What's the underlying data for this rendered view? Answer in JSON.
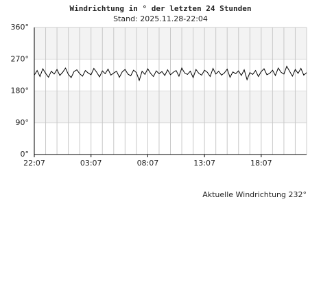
{
  "chart_data": {
    "type": "line",
    "title": "Windrichtung in ° der letzten 24 Stunden",
    "subtitle": "Stand: 2025.11.28-22:04",
    "annotation": "Aktuelle Windrichtung 232°",
    "x": [
      "22:07",
      "22:22",
      "22:37",
      "22:52",
      "23:07",
      "23:22",
      "23:37",
      "23:52",
      "00:07",
      "00:22",
      "00:37",
      "00:52",
      "01:07",
      "01:22",
      "01:37",
      "01:52",
      "02:07",
      "02:22",
      "02:37",
      "02:52",
      "03:07",
      "03:22",
      "03:37",
      "03:52",
      "04:07",
      "04:22",
      "04:37",
      "04:52",
      "05:07",
      "05:22",
      "05:37",
      "05:52",
      "06:07",
      "06:22",
      "06:37",
      "06:52",
      "07:07",
      "07:22",
      "07:37",
      "07:52",
      "08:07",
      "08:22",
      "08:37",
      "08:52",
      "09:07",
      "09:22",
      "09:37",
      "09:52",
      "10:07",
      "10:22",
      "10:37",
      "10:52",
      "11:07",
      "11:22",
      "11:37",
      "11:52",
      "12:07",
      "12:22",
      "12:37",
      "12:52",
      "13:07",
      "13:22",
      "13:37",
      "13:52",
      "14:07",
      "14:22",
      "14:37",
      "14:52",
      "15:07",
      "15:22",
      "15:37",
      "15:52",
      "16:07",
      "16:22",
      "16:37",
      "16:52",
      "17:07",
      "17:22",
      "17:37",
      "17:52",
      "18:07",
      "18:22",
      "18:37",
      "18:52",
      "19:07",
      "19:22",
      "19:37",
      "19:52",
      "20:07",
      "20:22",
      "20:37",
      "20:52",
      "21:07",
      "21:22",
      "21:37",
      "21:52",
      "22:07"
    ],
    "series": [
      {
        "name": "Windrichtung",
        "color": "#000000",
        "values": [
          225,
          238,
          221,
          243,
          230,
          219,
          236,
          228,
          241,
          224,
          233,
          245,
          227,
          218,
          235,
          240,
          229,
          222,
          238,
          231,
          226,
          244,
          233,
          220,
          237,
          229,
          242,
          225,
          231,
          236,
          219,
          234,
          241,
          228,
          223,
          239,
          232,
          210,
          236,
          227,
          243,
          230,
          221,
          237,
          229,
          235,
          224,
          240,
          226,
          233,
          238,
          222,
          245,
          231,
          227,
          236,
          218,
          241,
          230,
          225,
          239,
          233,
          221,
          244,
          228,
          236,
          225,
          231,
          242,
          219,
          234,
          229,
          237,
          224,
          240,
          212,
          232,
          227,
          238,
          221,
          235,
          243,
          226,
          230,
          239,
          224,
          245,
          233,
          228,
          250,
          236,
          222,
          241,
          230,
          244,
          225,
          232
        ]
      }
    ],
    "xticks": [
      "22:07",
      "03:07",
      "08:07",
      "13:07",
      "18:07"
    ],
    "ylim": [
      0,
      360
    ],
    "yticks": [
      {
        "value": 0,
        "label": "0°"
      },
      {
        "value": 90,
        "label": "90°"
      },
      {
        "value": 180,
        "label": "180°"
      },
      {
        "value": 270,
        "label": "270°"
      },
      {
        "value": 360,
        "label": "360°"
      }
    ],
    "grid": true
  }
}
